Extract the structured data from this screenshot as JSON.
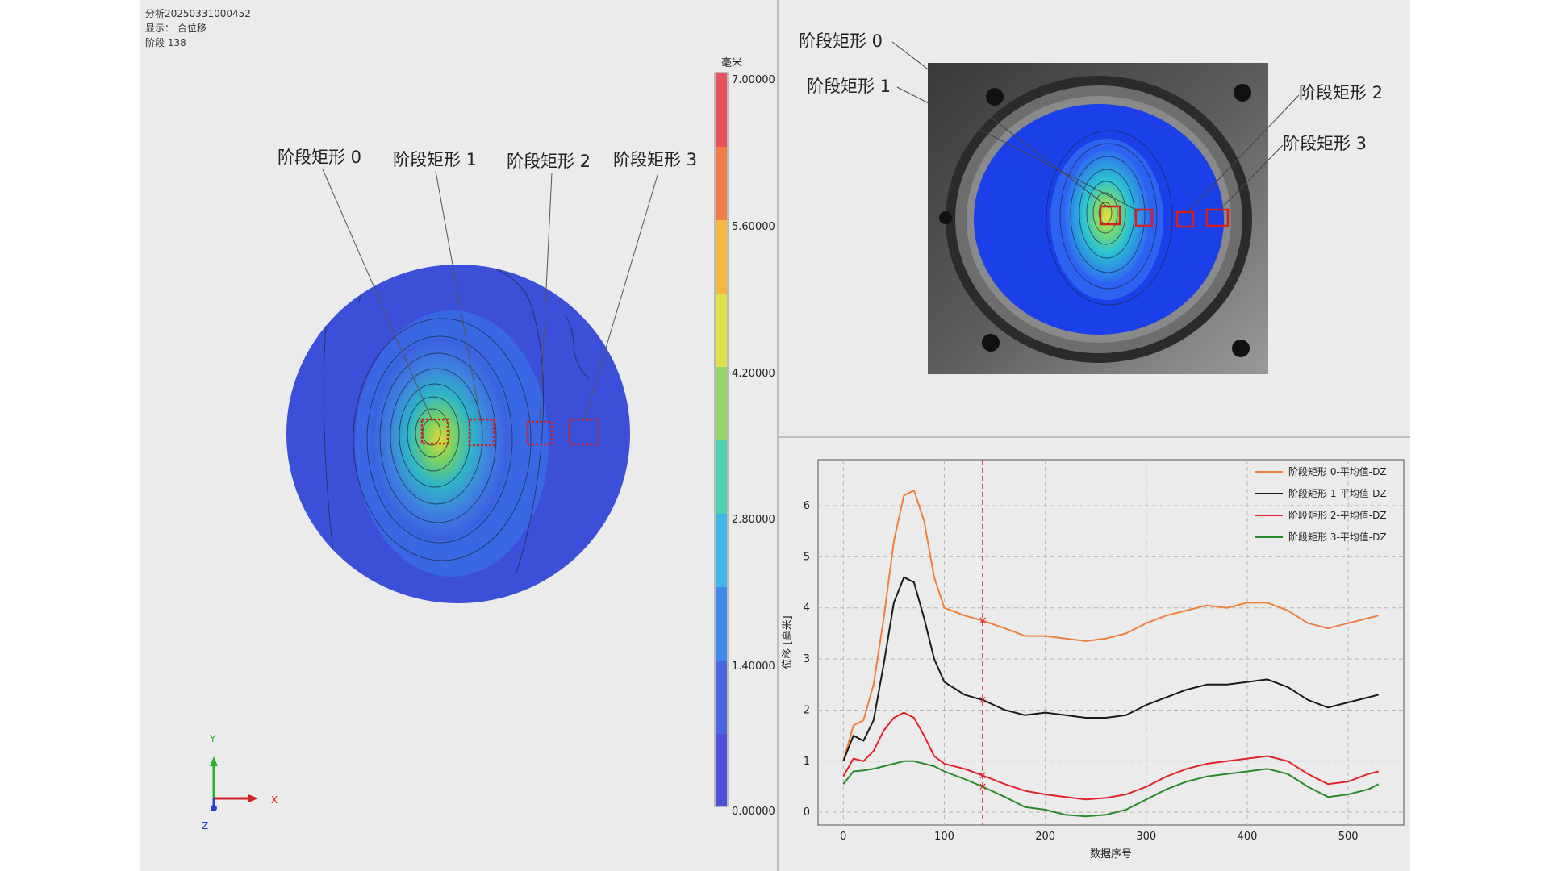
{
  "info": {
    "analysis_id": "分析20250331000452",
    "display": "显示： 合位移",
    "stage": "阶段 138"
  },
  "rect_labels": [
    "阶段矩形 0",
    "阶段矩形 1",
    "阶段矩形 2",
    "阶段矩形 3"
  ],
  "colorbar": {
    "unit": "毫米",
    "ticks": [
      "7.00000",
      "5.60000",
      "4.20000",
      "2.80000",
      "1.40000",
      "0.00000"
    ]
  },
  "axes_triad": {
    "y": "Y",
    "x": "X",
    "z": "Z"
  },
  "colors": {
    "panel_bg": "#ebebeb",
    "rect_red": "#d42020",
    "series_orange": "#f07f3c",
    "series_black": "#1a1a1a",
    "series_red": "#e0242b",
    "series_green": "#2a8a2a",
    "cursor_red": "#d42020"
  },
  "chart_data": {
    "type": "line",
    "xlabel": "数据序号",
    "ylabel": "位移 [毫米]",
    "xlim": [
      -25,
      555
    ],
    "ylim": [
      -0.25,
      6.9
    ],
    "xticks": [
      0,
      100,
      200,
      300,
      400,
      500
    ],
    "yticks": [
      0,
      1,
      2,
      3,
      4,
      5,
      6
    ],
    "grid": true,
    "legend_position": "top-right",
    "cursor_x": 138,
    "x": [
      0,
      10,
      20,
      30,
      40,
      50,
      60,
      70,
      80,
      90,
      100,
      120,
      138,
      160,
      180,
      200,
      220,
      240,
      260,
      280,
      300,
      320,
      340,
      360,
      380,
      400,
      420,
      440,
      460,
      480,
      500,
      520,
      530
    ],
    "series": [
      {
        "name": "阶段矩形 0-平均值-DZ",
        "values": [
          1.0,
          1.7,
          1.8,
          2.5,
          3.8,
          5.3,
          6.2,
          6.3,
          5.7,
          4.6,
          4.0,
          3.85,
          3.75,
          3.6,
          3.45,
          3.45,
          3.4,
          3.35,
          3.4,
          3.5,
          3.7,
          3.85,
          3.95,
          4.05,
          4.0,
          4.1,
          4.1,
          3.95,
          3.7,
          3.6,
          3.7,
          3.8,
          3.85
        ]
      },
      {
        "name": "阶段矩形 1-平均值-DZ",
        "values": [
          1.0,
          1.5,
          1.4,
          1.8,
          2.9,
          4.1,
          4.6,
          4.5,
          3.8,
          3.0,
          2.55,
          2.3,
          2.2,
          2.0,
          1.9,
          1.95,
          1.9,
          1.85,
          1.85,
          1.9,
          2.1,
          2.25,
          2.4,
          2.5,
          2.5,
          2.55,
          2.6,
          2.45,
          2.2,
          2.05,
          2.15,
          2.25,
          2.3
        ]
      },
      {
        "name": "阶段矩形 2-平均值-DZ",
        "values": [
          0.7,
          1.05,
          1.0,
          1.2,
          1.6,
          1.85,
          1.95,
          1.85,
          1.5,
          1.1,
          0.95,
          0.85,
          0.72,
          0.55,
          0.42,
          0.35,
          0.3,
          0.25,
          0.28,
          0.35,
          0.5,
          0.7,
          0.85,
          0.95,
          1.0,
          1.05,
          1.1,
          1.0,
          0.75,
          0.55,
          0.6,
          0.75,
          0.8
        ]
      },
      {
        "name": "阶段矩形 3-平均值-DZ",
        "values": [
          0.55,
          0.8,
          0.82,
          0.85,
          0.9,
          0.95,
          1.0,
          1.0,
          0.95,
          0.9,
          0.8,
          0.65,
          0.5,
          0.3,
          0.1,
          0.05,
          -0.05,
          -0.08,
          -0.05,
          0.05,
          0.25,
          0.45,
          0.6,
          0.7,
          0.75,
          0.8,
          0.85,
          0.75,
          0.5,
          0.3,
          0.35,
          0.45,
          0.55
        ]
      }
    ]
  }
}
